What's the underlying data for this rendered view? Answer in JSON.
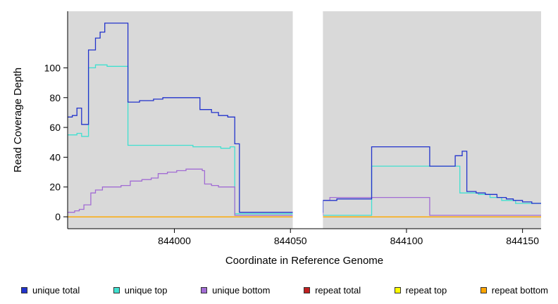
{
  "chart_data": {
    "type": "line",
    "subtype": "step",
    "title": "",
    "xlabel": "Coordinate in Reference Genome",
    "ylabel": "Read Coverage Depth",
    "x_ticks": [
      844000,
      844050,
      844100,
      844150
    ],
    "y_ticks": [
      0,
      20,
      40,
      60,
      80,
      100
    ],
    "x_range": [
      843954,
      844158
    ],
    "y_range": [
      -8,
      138
    ],
    "panel_background": "#d9d9d9",
    "gap_region": {
      "x_start": 844051,
      "x_end": 844064,
      "color": "#ffffff"
    },
    "legend_position": "bottom",
    "series": [
      {
        "name": "unique total",
        "color": "#2233cc",
        "z": 6,
        "points": [
          [
            843954,
            67
          ],
          [
            843956,
            68
          ],
          [
            843958,
            73
          ],
          [
            843960,
            62
          ],
          [
            843963,
            112
          ],
          [
            843966,
            120
          ],
          [
            843968,
            124
          ],
          [
            843970,
            130
          ],
          [
            843980,
            77
          ],
          [
            843985,
            78
          ],
          [
            843991,
            79
          ],
          [
            843995,
            80
          ],
          [
            844011,
            72
          ],
          [
            844016,
            70
          ],
          [
            844019,
            68
          ],
          [
            844023,
            67
          ],
          [
            844026,
            49
          ],
          [
            844028,
            3
          ],
          [
            844064,
            11
          ],
          [
            844070,
            12
          ],
          [
            844085,
            47
          ],
          [
            844110,
            34
          ],
          [
            844121,
            41
          ],
          [
            844124,
            44
          ],
          [
            844126,
            17
          ],
          [
            844130,
            16
          ],
          [
            844134,
            15
          ],
          [
            844139,
            13
          ],
          [
            844143,
            12
          ],
          [
            844146,
            11
          ],
          [
            844150,
            10
          ],
          [
            844154,
            9
          ]
        ]
      },
      {
        "name": "unique top",
        "color": "#40e0d0",
        "z": 1,
        "points": [
          [
            843954,
            55
          ],
          [
            843958,
            56
          ],
          [
            843960,
            54
          ],
          [
            843963,
            100
          ],
          [
            843966,
            102
          ],
          [
            843971,
            101
          ],
          [
            843980,
            48
          ],
          [
            844008,
            47
          ],
          [
            844020,
            46
          ],
          [
            844024,
            47
          ],
          [
            844026,
            2
          ],
          [
            844064,
            1
          ],
          [
            844085,
            34
          ],
          [
            844123,
            16
          ],
          [
            844131,
            15
          ],
          [
            844136,
            13
          ],
          [
            844141,
            11
          ],
          [
            844147,
            9
          ]
        ]
      },
      {
        "name": "unique bottom",
        "color": "#a26cd4",
        "z": 2,
        "points": [
          [
            843954,
            3
          ],
          [
            843957,
            4
          ],
          [
            843959,
            5
          ],
          [
            843961,
            8
          ],
          [
            843964,
            16
          ],
          [
            843966,
            18
          ],
          [
            843969,
            20
          ],
          [
            843977,
            21
          ],
          [
            843981,
            24
          ],
          [
            843986,
            25
          ],
          [
            843990,
            26
          ],
          [
            843993,
            29
          ],
          [
            843997,
            30
          ],
          [
            844001,
            31
          ],
          [
            844005,
            32
          ],
          [
            844012,
            31
          ],
          [
            844013,
            22
          ],
          [
            844016,
            21
          ],
          [
            844019,
            20
          ],
          [
            844026,
            1
          ],
          [
            844064,
            11
          ],
          [
            844067,
            13
          ],
          [
            844110,
            1
          ]
        ]
      },
      {
        "name": "repeat total",
        "color": "#c02020",
        "z": 3,
        "points": [
          [
            843954,
            0
          ]
        ]
      },
      {
        "name": "repeat top",
        "color": "#ffff00",
        "z": 4,
        "points": [
          [
            843954,
            0
          ]
        ]
      },
      {
        "name": "repeat bottom",
        "color": "#ffa500",
        "z": 5,
        "points": [
          [
            843954,
            0
          ]
        ]
      }
    ]
  }
}
